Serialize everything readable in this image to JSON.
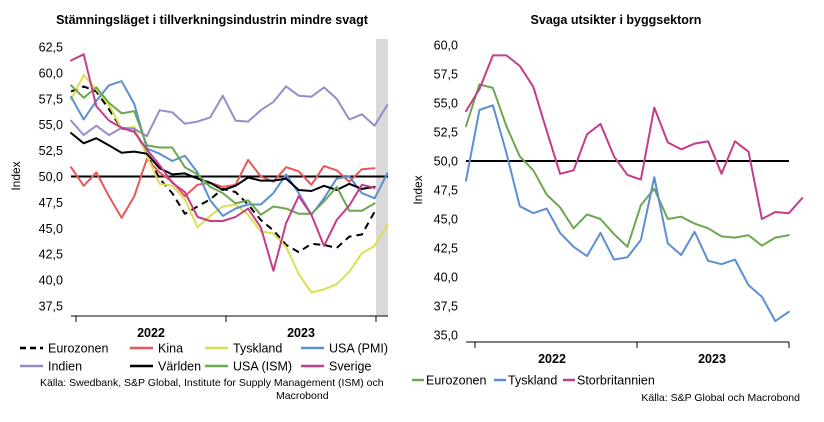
{
  "colors": {
    "eurozone": "#000000",
    "china": "#e8575a",
    "germany": "#dbe04e",
    "usa_pmi": "#5b8fd0",
    "india": "#9b8ac9",
    "world": "#000000",
    "usa_ism": "#6aa84f",
    "sweden": "#c43c8a",
    "uk": "#c43c8a",
    "shade": "#d9d9d9"
  },
  "left": {
    "title": "Stämningsläget i tillverkningsindustrin mindre svagt",
    "source_line1": "Källa: Swedbank, S&P Global, Institute for Supply Management (ISM) och",
    "source_line2": "Macrobond"
  },
  "right": {
    "title": "Svaga utsikter i byggsektorn",
    "source": "Källa: S&P Global och Macrobond"
  },
  "chart_data": [
    {
      "type": "line",
      "title": "Stämningsläget i tillverkningsindustrin mindre svagt",
      "ylabel": "Index",
      "ylim": [
        37.5,
        62.5
      ],
      "yticks": [
        "62,5",
        "60,0",
        "57,5",
        "55,0",
        "52,5",
        "50,0",
        "47,5",
        "45,0",
        "42,5",
        "40,0",
        "37,5"
      ],
      "ytick_values": [
        62.5,
        60,
        57.5,
        55,
        52.5,
        50,
        47.5,
        45,
        42.5,
        40,
        37.5
      ],
      "year_labels": [
        "2022",
        "2023"
      ],
      "reference_line": 50,
      "shaded_last_month": true,
      "x_months": 24,
      "series": [
        {
          "name": "Eurozonen",
          "key": "eurozone",
          "dashed": true,
          "values": [
            58.2,
            58.7,
            58.2,
            56.5,
            54.6,
            54.6,
            52.1,
            49.8,
            48.4,
            46.4,
            47.1,
            47.8,
            48.8,
            48.5,
            47.3,
            45.8,
            44.8,
            43.4,
            42.7,
            43.5,
            43.4,
            43.1,
            44.2,
            44.4,
            46.6
          ]
        },
        {
          "name": "Kina",
          "key": "china",
          "values": [
            50.9,
            49.1,
            50.4,
            48.1,
            46.0,
            48.1,
            51.7,
            50.4,
            49.5,
            48.1,
            49.2,
            49.4,
            49.0,
            49.2,
            51.6,
            50.0,
            49.5,
            50.9,
            50.5,
            49.2,
            51.0,
            50.6,
            49.5,
            50.7,
            50.8
          ]
        },
        {
          "name": "Tyskland",
          "key": "germany",
          "values": [
            57.4,
            59.8,
            58.4,
            56.9,
            54.6,
            54.8,
            52.0,
            49.3,
            49.1,
            47.8,
            45.1,
            46.2,
            47.1,
            47.3,
            46.3,
            44.7,
            44.5,
            43.2,
            40.6,
            38.8,
            39.1,
            39.6,
            40.8,
            42.6,
            43.3,
            45.4
          ]
        },
        {
          "name": "USA (PMI)",
          "key": "usa_pmi",
          "values": [
            57.7,
            55.5,
            57.3,
            58.8,
            59.2,
            57.0,
            52.7,
            52.2,
            51.5,
            52.0,
            50.4,
            47.7,
            46.2,
            46.9,
            47.3,
            47.3,
            48.4,
            50.2,
            48.4,
            46.3,
            47.9,
            49.8,
            50.0,
            48.4,
            47.9,
            50.3
          ]
        },
        {
          "name": "Indien",
          "key": "india",
          "values": [
            55.4,
            54.0,
            54.9,
            54.0,
            54.7,
            54.6,
            53.9,
            56.4,
            56.2,
            55.1,
            55.3,
            55.7,
            57.8,
            55.4,
            55.3,
            56.4,
            57.2,
            58.7,
            57.8,
            57.7,
            58.6,
            57.5,
            55.5,
            56.0,
            54.9,
            56.9
          ]
        },
        {
          "name": "Världen",
          "key": "world",
          "values": [
            54.2,
            53.2,
            53.7,
            53.0,
            52.3,
            52.4,
            52.2,
            50.8,
            50.2,
            50.3,
            49.8,
            49.4,
            48.7,
            49.1,
            49.9,
            49.6,
            49.6,
            49.8,
            48.7,
            48.6,
            49.1,
            48.7,
            49.3,
            48.8,
            49.0
          ]
        },
        {
          "name": "USA (ISM)",
          "key": "usa_ism",
          "values": [
            58.8,
            57.6,
            58.6,
            57.1,
            56.1,
            56.3,
            53.0,
            52.8,
            52.8,
            50.9,
            50.2,
            49.0,
            48.4,
            47.4,
            47.7,
            46.3,
            47.1,
            46.9,
            46.4,
            46.4,
            47.6,
            49.0,
            46.7,
            46.7,
            47.4
          ]
        },
        {
          "name": "Sverige",
          "key": "sweden",
          "values": [
            61.2,
            61.8,
            56.8,
            55.4,
            54.7,
            54.3,
            52.6,
            51.1,
            49.4,
            48.5,
            46.1,
            45.7,
            45.7,
            46.1,
            46.9,
            45.1,
            40.9,
            45.5,
            48.1,
            46.3,
            43.3,
            45.8,
            47.2,
            49.2,
            48.9
          ]
        }
      ]
    },
    {
      "type": "line",
      "title": "Svaga utsikter i byggsektorn",
      "ylabel": "Index",
      "ylim": [
        35.0,
        60.0
      ],
      "yticks": [
        "60,0",
        "57,5",
        "55,0",
        "52,5",
        "50,0",
        "47,5",
        "45,0",
        "42,5",
        "40,0",
        "37,5",
        "35,0"
      ],
      "ytick_values": [
        60,
        57.5,
        55,
        52.5,
        50,
        47.5,
        45,
        42.5,
        40,
        37.5,
        35
      ],
      "year_labels": [
        "2022",
        "2023"
      ],
      "reference_line": 50,
      "series": [
        {
          "name": "Eurozonen",
          "key": "usa_ism",
          "values": [
            53.0,
            56.6,
            56.3,
            53.0,
            50.4,
            49.2,
            47.1,
            46.0,
            44.2,
            45.4,
            45.0,
            43.7,
            42.6,
            46.2,
            47.6,
            45.0,
            45.2,
            44.6,
            44.2,
            43.5,
            43.4,
            43.6,
            42.7,
            43.4,
            43.6
          ]
        },
        {
          "name": "Tyskland",
          "key": "usa_pmi",
          "values": [
            48.3,
            54.4,
            54.8,
            50.7,
            46.1,
            45.5,
            45.9,
            43.8,
            42.6,
            41.8,
            43.8,
            41.5,
            41.7,
            43.2,
            48.6,
            42.9,
            41.9,
            43.9,
            41.4,
            41.1,
            41.5,
            39.3,
            38.3,
            36.2,
            37.0
          ]
        },
        {
          "name": "Storbritannien",
          "key": "uk",
          "values": [
            54.3,
            56.2,
            59.1,
            59.1,
            58.2,
            56.4,
            52.6,
            48.9,
            49.2,
            52.3,
            53.2,
            50.4,
            48.8,
            48.4,
            54.6,
            51.6,
            51.0,
            51.5,
            51.7,
            48.9,
            51.7,
            50.8,
            45.0,
            45.6,
            45.5,
            46.8
          ]
        }
      ]
    }
  ],
  "legend_left": [
    {
      "label": "Eurozonen",
      "key": "eurozone",
      "dashed": true
    },
    {
      "label": "Kina",
      "key": "china"
    },
    {
      "label": "Tyskland",
      "key": "germany"
    },
    {
      "label": "USA (PMI)",
      "key": "usa_pmi"
    },
    {
      "label": "Indien",
      "key": "india"
    },
    {
      "label": "Världen",
      "key": "world"
    },
    {
      "label": "USA (ISM)",
      "key": "usa_ism"
    },
    {
      "label": "Sverige",
      "key": "sweden"
    }
  ],
  "legend_right": [
    {
      "label": "Eurozonen",
      "key": "usa_ism"
    },
    {
      "label": "Tyskland",
      "key": "usa_pmi"
    },
    {
      "label": "Storbritannien",
      "key": "uk"
    }
  ]
}
